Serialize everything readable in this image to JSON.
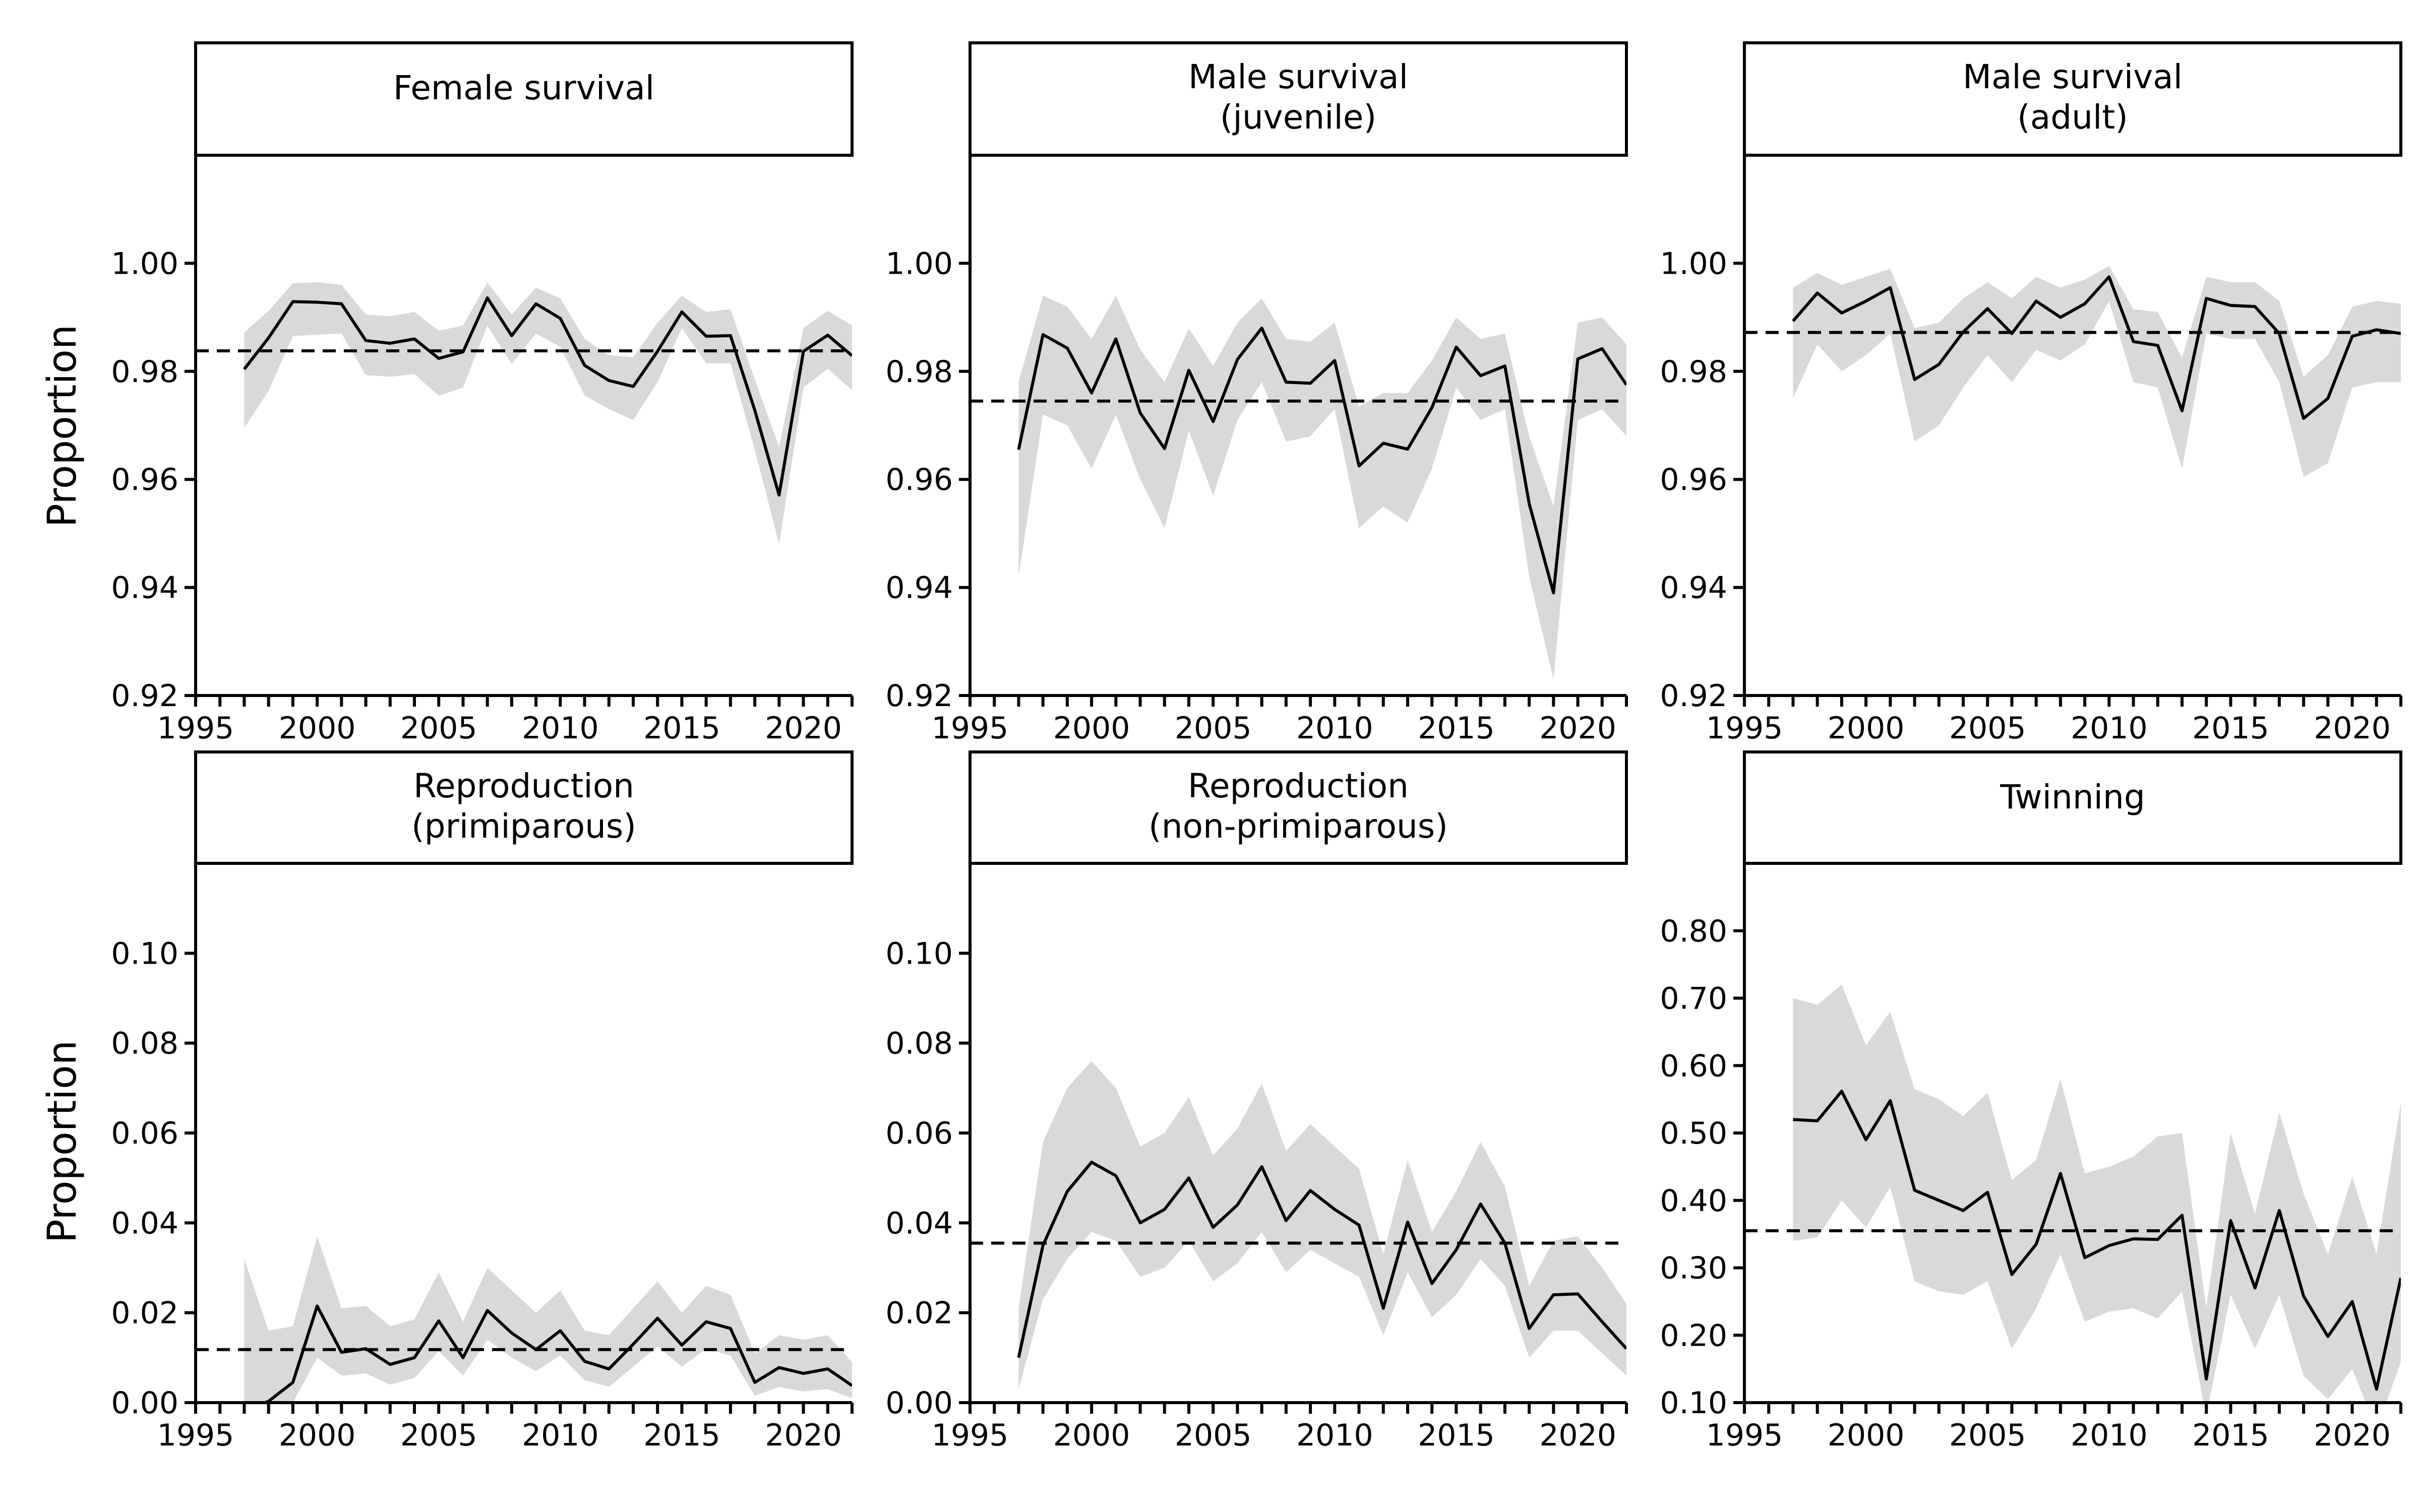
{
  "figure": {
    "ylabel_top": "Proportion",
    "ylabel_bottom": "Proportion"
  },
  "chart_data": [
    {
      "type": "line",
      "title": "Female survival",
      "title_lines": [
        "Female survival"
      ],
      "xlabel": "",
      "ylabel": "Proportion",
      "xlim": [
        1995,
        2022
      ],
      "ylim": [
        0.92,
        1.02
      ],
      "x_ticks": [
        1995,
        2000,
        2005,
        2010,
        2015,
        2020
      ],
      "x_tick_labels": [
        "1995",
        "2000",
        "2005",
        "2010",
        "2015",
        "2020"
      ],
      "y_ticks": [
        0.92,
        0.94,
        0.96,
        0.98,
        1.0
      ],
      "y_tick_labels": [
        "0.92",
        "0.94",
        "0.96",
        "0.98",
        "1.00"
      ],
      "grid": false,
      "mean": 0.9838,
      "x": [
        1997,
        1998,
        1999,
        2000,
        2001,
        2002,
        2003,
        2004,
        2005,
        2006,
        2007,
        2008,
        2009,
        2010,
        2011,
        2012,
        2013,
        2014,
        2015,
        2016,
        2017,
        2018,
        2019,
        2020,
        2021,
        2022
      ],
      "y": [
        0.9804,
        0.9862,
        0.9929,
        0.9928,
        0.9925,
        0.9857,
        0.9852,
        0.986,
        0.9824,
        0.9836,
        0.9936,
        0.9866,
        0.9925,
        0.9898,
        0.9811,
        0.9783,
        0.9772,
        0.9837,
        0.991,
        0.9865,
        0.9866,
        0.9728,
        0.9571,
        0.9837,
        0.9867,
        0.9829
      ],
      "lower": [
        0.9695,
        0.9764,
        0.9865,
        0.9868,
        0.987,
        0.9793,
        0.979,
        0.9795,
        0.9755,
        0.977,
        0.9885,
        0.9813,
        0.987,
        0.9845,
        0.9755,
        0.973,
        0.971,
        0.978,
        0.988,
        0.9815,
        0.9815,
        0.9655,
        0.948,
        0.977,
        0.9805,
        0.9765
      ],
      "upper": [
        0.9872,
        0.9912,
        0.9963,
        0.9965,
        0.996,
        0.9905,
        0.9902,
        0.991,
        0.9875,
        0.9885,
        0.9965,
        0.9905,
        0.9955,
        0.9935,
        0.986,
        0.983,
        0.9826,
        0.989,
        0.994,
        0.991,
        0.9915,
        0.9785,
        0.966,
        0.988,
        0.9912,
        0.9885
      ]
    },
    {
      "type": "line",
      "title": "Male survival (juvenile)",
      "title_lines": [
        "Male survival",
        "(juvenile)"
      ],
      "xlabel": "",
      "ylabel": "",
      "xlim": [
        1995,
        2022
      ],
      "ylim": [
        0.92,
        1.02
      ],
      "x_ticks": [
        1995,
        2000,
        2005,
        2010,
        2015,
        2020
      ],
      "x_tick_labels": [
        "1995",
        "2000",
        "2005",
        "2010",
        "2015",
        "2020"
      ],
      "y_ticks": [
        0.92,
        0.94,
        0.96,
        0.98,
        1.0
      ],
      "y_tick_labels": [
        "0.92",
        "0.94",
        "0.96",
        "0.98",
        "1.00"
      ],
      "grid": false,
      "mean": 0.9745,
      "x": [
        1997,
        1998,
        1999,
        2000,
        2001,
        2002,
        2003,
        2004,
        2005,
        2006,
        2007,
        2008,
        2009,
        2010,
        2011,
        2012,
        2013,
        2014,
        2015,
        2016,
        2017,
        2018,
        2019,
        2020,
        2021,
        2022
      ],
      "y": [
        0.9655,
        0.9868,
        0.9843,
        0.976,
        0.986,
        0.9723,
        0.9657,
        0.9802,
        0.9707,
        0.9822,
        0.988,
        0.978,
        0.9778,
        0.982,
        0.9625,
        0.9667,
        0.9656,
        0.9733,
        0.9845,
        0.9792,
        0.981,
        0.9555,
        0.939,
        0.9823,
        0.9842,
        0.9775
      ],
      "lower": [
        0.942,
        0.972,
        0.97,
        0.962,
        0.972,
        0.96,
        0.951,
        0.969,
        0.957,
        0.971,
        0.978,
        0.967,
        0.968,
        0.973,
        0.951,
        0.955,
        0.952,
        0.962,
        0.977,
        0.971,
        0.973,
        0.942,
        0.923,
        0.971,
        0.973,
        0.968
      ],
      "upper": [
        0.978,
        0.994,
        0.992,
        0.986,
        0.994,
        0.984,
        0.978,
        0.988,
        0.981,
        0.989,
        0.9935,
        0.986,
        0.9855,
        0.989,
        0.9735,
        0.976,
        0.976,
        0.982,
        0.99,
        0.986,
        0.987,
        0.968,
        0.955,
        0.989,
        0.99,
        0.985
      ]
    },
    {
      "type": "line",
      "title": "Male survival (adult)",
      "title_lines": [
        "Male survival",
        "(adult)"
      ],
      "xlabel": "",
      "ylabel": "",
      "xlim": [
        1995,
        2022
      ],
      "ylim": [
        0.92,
        1.02
      ],
      "x_ticks": [
        1995,
        2000,
        2005,
        2010,
        2015,
        2020
      ],
      "x_tick_labels": [
        "1995",
        "2000",
        "2005",
        "2010",
        "2015",
        "2020"
      ],
      "y_ticks": [
        0.92,
        0.94,
        0.96,
        0.98,
        1.0
      ],
      "y_tick_labels": [
        "0.92",
        "0.94",
        "0.96",
        "0.98",
        "1.00"
      ],
      "grid": false,
      "mean": 0.9872,
      "x": [
        1997,
        1998,
        1999,
        2000,
        2001,
        2002,
        2003,
        2004,
        2005,
        2006,
        2007,
        2008,
        2009,
        2010,
        2011,
        2012,
        2013,
        2014,
        2015,
        2016,
        2017,
        2018,
        2019,
        2020,
        2021,
        2022
      ],
      "y": [
        0.9893,
        0.9945,
        0.9908,
        0.993,
        0.9955,
        0.9785,
        0.9813,
        0.9873,
        0.9916,
        0.987,
        0.993,
        0.99,
        0.9925,
        0.9975,
        0.9855,
        0.9848,
        0.9727,
        0.9935,
        0.9922,
        0.992,
        0.987,
        0.9713,
        0.975,
        0.9865,
        0.9877,
        0.987
      ],
      "lower": [
        0.975,
        0.985,
        0.98,
        0.983,
        0.987,
        0.967,
        0.97,
        0.977,
        0.983,
        0.978,
        0.984,
        0.982,
        0.985,
        0.993,
        0.978,
        0.977,
        0.962,
        0.987,
        0.986,
        0.986,
        0.978,
        0.9605,
        0.963,
        0.977,
        0.978,
        0.978
      ],
      "upper": [
        0.9955,
        0.9982,
        0.996,
        0.9975,
        0.999,
        0.988,
        0.989,
        0.9935,
        0.9965,
        0.9935,
        0.9975,
        0.9955,
        0.997,
        0.9995,
        0.9915,
        0.991,
        0.9825,
        0.9975,
        0.9965,
        0.9965,
        0.993,
        0.979,
        0.983,
        0.992,
        0.993,
        0.9925
      ]
    },
    {
      "type": "line",
      "title": "Reproduction (primiparous)",
      "title_lines": [
        "Reproduction",
        "(primiparous)"
      ],
      "xlabel": "",
      "ylabel": "Proportion",
      "xlim": [
        1995,
        2022
      ],
      "ylim": [
        0.0,
        0.12
      ],
      "x_ticks": [
        1995,
        2000,
        2005,
        2010,
        2015,
        2020
      ],
      "x_tick_labels": [
        "1995",
        "2000",
        "2005",
        "2010",
        "2015",
        "2020"
      ],
      "y_ticks": [
        0.0,
        0.02,
        0.04,
        0.06,
        0.08,
        0.1
      ],
      "y_tick_labels": [
        "0.00",
        "0.02",
        "0.04",
        "0.06",
        "0.08",
        "0.10"
      ],
      "grid": false,
      "mean": 0.0118,
      "x": [
        1997,
        1998,
        1999,
        2000,
        2001,
        2002,
        2003,
        2004,
        2005,
        2006,
        2007,
        2008,
        2009,
        2010,
        2011,
        2012,
        2013,
        2014,
        2015,
        2016,
        2017,
        2018,
        2019,
        2020,
        2021,
        2022
      ],
      "y": [
        -0.002,
        0.0003,
        0.0045,
        0.0215,
        0.0112,
        0.012,
        0.0085,
        0.01,
        0.0182,
        0.01,
        0.0205,
        0.0155,
        0.0118,
        0.016,
        0.0092,
        0.0075,
        0.013,
        0.0188,
        0.0128,
        0.018,
        0.0165,
        0.0045,
        0.0078,
        0.0065,
        0.0075,
        0.0038
      ],
      "lower": [
        0.0,
        0.0,
        0.0,
        0.01,
        0.006,
        0.0065,
        0.004,
        0.0055,
        0.0115,
        0.006,
        0.014,
        0.01,
        0.007,
        0.0105,
        0.005,
        0.0035,
        0.008,
        0.0125,
        0.008,
        0.012,
        0.0105,
        0.0015,
        0.0035,
        0.0025,
        0.003,
        0.001
      ],
      "upper": [
        0.032,
        0.016,
        0.017,
        0.037,
        0.021,
        0.0215,
        0.017,
        0.0185,
        0.029,
        0.018,
        0.03,
        0.025,
        0.02,
        0.025,
        0.016,
        0.015,
        0.021,
        0.027,
        0.02,
        0.026,
        0.024,
        0.011,
        0.015,
        0.014,
        0.015,
        0.009
      ]
    },
    {
      "type": "line",
      "title": "Reproduction (non-primiparous)",
      "title_lines": [
        "Reproduction",
        "(non-primiparous)"
      ],
      "xlabel": "",
      "ylabel": "",
      "xlim": [
        1995,
        2022
      ],
      "ylim": [
        0.0,
        0.12
      ],
      "x_ticks": [
        1995,
        2000,
        2005,
        2010,
        2015,
        2020
      ],
      "x_tick_labels": [
        "1995",
        "2000",
        "2005",
        "2010",
        "2015",
        "2020"
      ],
      "y_ticks": [
        0.0,
        0.02,
        0.04,
        0.06,
        0.08,
        0.1
      ],
      "y_tick_labels": [
        "0.00",
        "0.02",
        "0.04",
        "0.06",
        "0.08",
        "0.10"
      ],
      "grid": false,
      "mean": 0.0355,
      "x": [
        1997,
        1998,
        1999,
        2000,
        2001,
        2002,
        2003,
        2004,
        2005,
        2006,
        2007,
        2008,
        2009,
        2010,
        2011,
        2012,
        2013,
        2014,
        2015,
        2016,
        2017,
        2018,
        2019,
        2020,
        2021,
        2022
      ],
      "y": [
        0.01,
        0.035,
        0.047,
        0.0535,
        0.0505,
        0.04,
        0.043,
        0.05,
        0.039,
        0.044,
        0.0525,
        0.0405,
        0.0472,
        0.043,
        0.0395,
        0.021,
        0.0402,
        0.0265,
        0.034,
        0.0442,
        0.0355,
        0.0165,
        0.024,
        0.0242,
        0.018,
        0.012
      ],
      "lower": [
        0.003,
        0.023,
        0.032,
        0.038,
        0.036,
        0.028,
        0.03,
        0.036,
        0.027,
        0.031,
        0.038,
        0.029,
        0.034,
        0.031,
        0.028,
        0.015,
        0.029,
        0.019,
        0.024,
        0.032,
        0.026,
        0.01,
        0.016,
        0.016,
        0.011,
        0.006
      ],
      "upper": [
        0.021,
        0.058,
        0.07,
        0.076,
        0.07,
        0.057,
        0.06,
        0.068,
        0.055,
        0.061,
        0.071,
        0.056,
        0.062,
        0.057,
        0.052,
        0.033,
        0.054,
        0.038,
        0.047,
        0.058,
        0.048,
        0.026,
        0.036,
        0.037,
        0.03,
        0.022
      ]
    },
    {
      "type": "line",
      "title": "Twinning",
      "title_lines": [
        "Twinning"
      ],
      "xlabel": "",
      "ylabel": "",
      "xlim": [
        1995,
        2022
      ],
      "ylim": [
        0.1,
        0.9
      ],
      "x_ticks": [
        1995,
        2000,
        2005,
        2010,
        2015,
        2020
      ],
      "x_tick_labels": [
        "1995",
        "2000",
        "2005",
        "2010",
        "2015",
        "2020"
      ],
      "y_ticks": [
        0.1,
        0.2,
        0.3,
        0.4,
        0.5,
        0.6,
        0.7,
        0.8
      ],
      "y_tick_labels": [
        "0.10",
        "0.20",
        "0.30",
        "0.40",
        "0.50",
        "0.60",
        "0.70",
        "0.80"
      ],
      "grid": false,
      "mean": 0.355,
      "x": [
        1997,
        1998,
        1999,
        2000,
        2001,
        2002,
        2003,
        2004,
        2005,
        2006,
        2007,
        2008,
        2009,
        2010,
        2011,
        2012,
        2013,
        2014,
        2015,
        2016,
        2017,
        2018,
        2019,
        2020,
        2021,
        2022
      ],
      "y": [
        0.52,
        0.518,
        0.562,
        0.49,
        0.548,
        0.415,
        0.4,
        0.385,
        0.412,
        0.29,
        0.335,
        0.44,
        0.315,
        0.333,
        0.343,
        0.342,
        0.378,
        0.135,
        0.37,
        0.27,
        0.385,
        0.258,
        0.198,
        0.25,
        0.12,
        0.285
      ],
      "lower": [
        0.34,
        0.345,
        0.4,
        0.36,
        0.42,
        0.28,
        0.265,
        0.26,
        0.28,
        0.18,
        0.24,
        0.32,
        0.22,
        0.235,
        0.24,
        0.225,
        0.265,
        0.08,
        0.26,
        0.18,
        0.26,
        0.14,
        0.105,
        0.15,
        0.06,
        0.16
      ],
      "upper": [
        0.7,
        0.69,
        0.72,
        0.63,
        0.68,
        0.565,
        0.55,
        0.525,
        0.56,
        0.43,
        0.46,
        0.58,
        0.44,
        0.45,
        0.465,
        0.495,
        0.5,
        0.24,
        0.5,
        0.38,
        0.53,
        0.41,
        0.32,
        0.435,
        0.32,
        0.545
      ]
    }
  ]
}
